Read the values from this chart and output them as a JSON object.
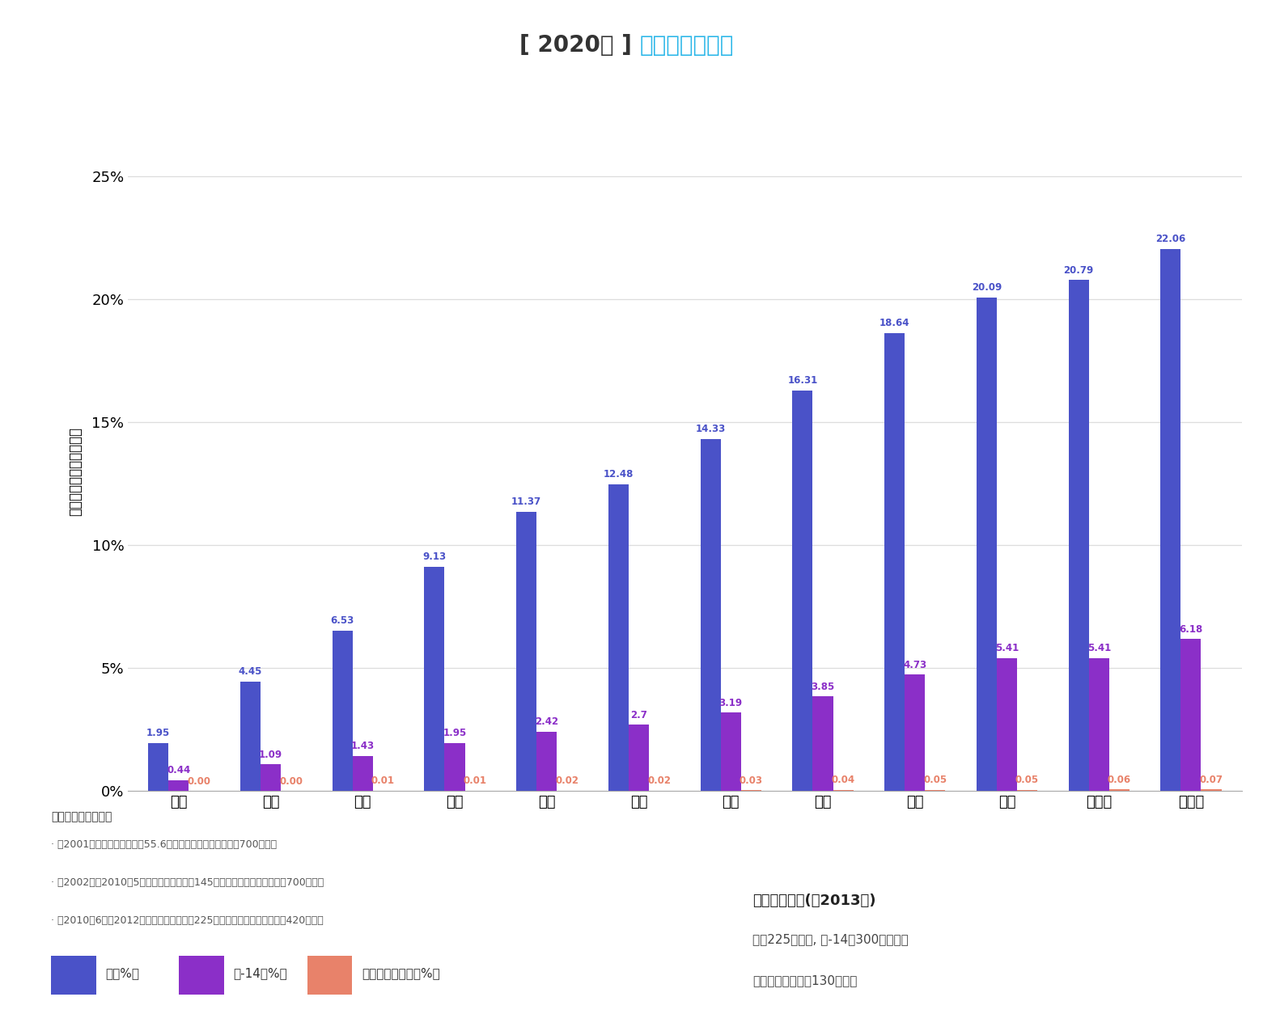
{
  "title_bracket": "[ 2020年 ]",
  "title_main": "累积液体排放量",
  "title_bracket_color": "#333333",
  "title_main_color": "#29B6E8",
  "ylabel": "占每年许可限值的百分数",
  "months": [
    "一月",
    "二月",
    "三月",
    "四月",
    "五月",
    "六月",
    "七月",
    "八月",
    "九月",
    "十月",
    "十一月",
    "十二月"
  ],
  "h2_values": [
    1.95,
    4.45,
    6.53,
    9.13,
    11.37,
    12.48,
    14.33,
    16.31,
    18.64,
    20.09,
    20.79,
    22.06
  ],
  "c14_values": [
    0.44,
    1.09,
    1.43,
    1.95,
    2.42,
    2.7,
    3.19,
    3.85,
    4.73,
    5.41,
    5.41,
    6.18
  ],
  "other_values": [
    0.0,
    0.0,
    0.01,
    0.01,
    0.02,
    0.02,
    0.03,
    0.04,
    0.05,
    0.05,
    0.06,
    0.07
  ],
  "h2_color": "#4A52C8",
  "c14_color": "#8B2FC8",
  "other_color": "#E8826A",
  "bar_width": 0.22,
  "ylim_max": 26,
  "yticks": [
    0,
    5,
    10,
    15,
    20,
    25
  ],
  "ytick_labels": [
    "0%",
    "5%",
    "10%",
    "15%",
    "20%",
    "25%"
  ],
  "annotation_color_h2": "#4A52C8",
  "annotation_color_c14": "#8B2FC8",
  "annotation_color_other": "#E8826A",
  "note_title": "关于每年许可限值：",
  "note_lines": [
    "· 至2001年止，限值为：氚：55.6太贝可，其他放射性核素：700吉贝可",
    "· 自2002年至2010年5月止，限值为：氚：145太贝可，其他放射性核素：700吉贝可",
    "· 自2010年6月至2012年止，限值为：氚：225太贝可，其他放射性核素：420吉贝可"
  ],
  "legend_labels": [
    "氚（%）",
    "砖-14（%）",
    "其他放射性核素（%）"
  ],
  "legend_colors": [
    "#4A52C8",
    "#8B2FC8",
    "#E8826A"
  ],
  "limit_title": "每年许可限值(自2013年)",
  "limit_line1": "氚：225太贝可, 砖-14：300吉贝可，",
  "limit_line2": "其他放射性核素：130吉贝可",
  "bg_color": "#FFFFFF",
  "grid_color": "#DDDDDD",
  "separator_color": "#4A6070"
}
